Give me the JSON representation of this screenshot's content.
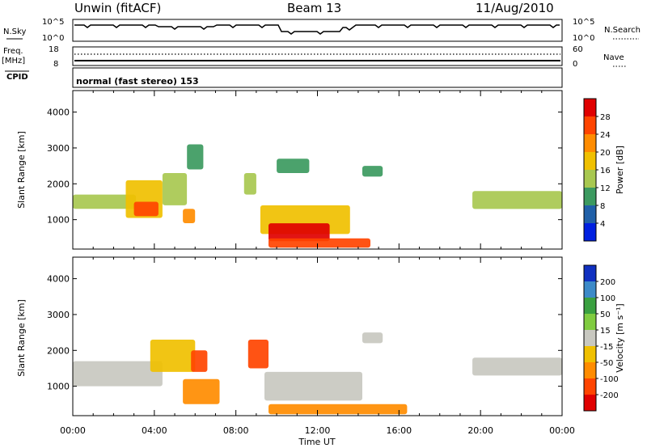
{
  "header": {
    "station": "Unwin (fitACF)",
    "beam": "Beam 13",
    "date": "11/Aug/2010"
  },
  "panels": {
    "nsky": {
      "label": "N.Sky",
      "ticks": [
        "10^5",
        "10^0"
      ],
      "right_ticks": [
        "10^5",
        "10^0"
      ],
      "right_label": "N.Search"
    },
    "freq": {
      "label_line1": "Freq.",
      "label_line2": "[MHz]",
      "ticks": [
        "18",
        "8"
      ],
      "right_ticks": [
        "60",
        "0"
      ],
      "right_label": "Nave"
    },
    "cpid": {
      "label": "CPID",
      "value": "normal (fast stereo) 153"
    }
  },
  "power_panel": {
    "ylabel": "Slant Range [km]",
    "colorbar_label": "Power [dB]",
    "colorbar_ticks": [
      "28",
      "24",
      "20",
      "16",
      "12",
      "8",
      "4"
    ],
    "colorbar_colors": [
      "#e00000",
      "#ff4400",
      "#ff8c00",
      "#f0c000",
      "#a8c850",
      "#3c9a60",
      "#2060a8",
      "#0020e0"
    ]
  },
  "velocity_panel": {
    "ylabel": "Slant Range [km]",
    "colorbar_label": "Velocity [m s⁻¹]",
    "colorbar_ticks": [
      "200",
      "100",
      "50",
      "15",
      "-15",
      "-50",
      "-100",
      "-200"
    ],
    "colorbar_colors": [
      "#1030c0",
      "#3c8ac8",
      "#3aa040",
      "#80cc40",
      "#c8c8c0",
      "#f0c000",
      "#ff8c00",
      "#ff4400",
      "#e00000"
    ]
  },
  "x_axis": {
    "label": "Time UT",
    "ticks": [
      "00:00",
      "04:00",
      "08:00",
      "12:00",
      "16:00",
      "20:00",
      "00:00"
    ]
  },
  "chart_data": {
    "type": "heatmap",
    "x_range_hours": [
      0,
      24
    ],
    "y_range_km": [
      180,
      4600
    ],
    "y_ticks": [
      1000,
      2000,
      3000,
      4000
    ],
    "power_regions": [
      {
        "t0": 0.0,
        "t1": 3.1,
        "r0": 1300,
        "r1": 1700,
        "value": 12
      },
      {
        "t0": 2.6,
        "t1": 4.4,
        "r0": 1050,
        "r1": 2100,
        "value": 18
      },
      {
        "t0": 3.0,
        "t1": 4.2,
        "r0": 1100,
        "r1": 1500,
        "value": 26
      },
      {
        "t0": 4.4,
        "t1": 5.6,
        "r0": 1400,
        "r1": 2300,
        "value": 14
      },
      {
        "t0": 5.4,
        "t1": 6.0,
        "r0": 900,
        "r1": 1300,
        "value": 22
      },
      {
        "t0": 5.6,
        "t1": 6.4,
        "r0": 2400,
        "r1": 3100,
        "value": 10
      },
      {
        "t0": 8.4,
        "t1": 9.0,
        "r0": 1700,
        "r1": 2300,
        "value": 12
      },
      {
        "t0": 9.2,
        "t1": 13.6,
        "r0": 600,
        "r1": 1400,
        "value": 16
      },
      {
        "t0": 9.6,
        "t1": 12.6,
        "r0": 400,
        "r1": 900,
        "value": 28
      },
      {
        "t0": 9.6,
        "t1": 14.6,
        "r0": 220,
        "r1": 480,
        "value": 24
      },
      {
        "t0": 10.0,
        "t1": 11.6,
        "r0": 2300,
        "r1": 2700,
        "value": 8
      },
      {
        "t0": 14.2,
        "t1": 15.2,
        "r0": 2200,
        "r1": 2500,
        "value": 8
      },
      {
        "t0": 19.6,
        "t1": 24.0,
        "r0": 1300,
        "r1": 1800,
        "value": 12
      }
    ],
    "velocity_regions": [
      {
        "t0": 0.0,
        "t1": 4.4,
        "r0": 1000,
        "r1": 1700,
        "value": 0
      },
      {
        "t0": 3.8,
        "t1": 6.0,
        "r0": 1400,
        "r1": 2300,
        "value": -30
      },
      {
        "t0": 5.4,
        "t1": 7.2,
        "r0": 500,
        "r1": 1200,
        "value": -60
      },
      {
        "t0": 5.8,
        "t1": 6.6,
        "r0": 1400,
        "r1": 2000,
        "value": -180
      },
      {
        "t0": 8.6,
        "t1": 9.6,
        "r0": 1500,
        "r1": 2300,
        "value": -160
      },
      {
        "t0": 9.4,
        "t1": 14.2,
        "r0": 600,
        "r1": 1400,
        "value": 0
      },
      {
        "t0": 9.6,
        "t1": 16.4,
        "r0": 220,
        "r1": 500,
        "value": -60
      },
      {
        "t0": 14.2,
        "t1": 15.2,
        "r0": 2200,
        "r1": 2500,
        "value": 0
      },
      {
        "t0": 19.6,
        "t1": 24.0,
        "r0": 1300,
        "r1": 1800,
        "value": 0
      }
    ]
  }
}
